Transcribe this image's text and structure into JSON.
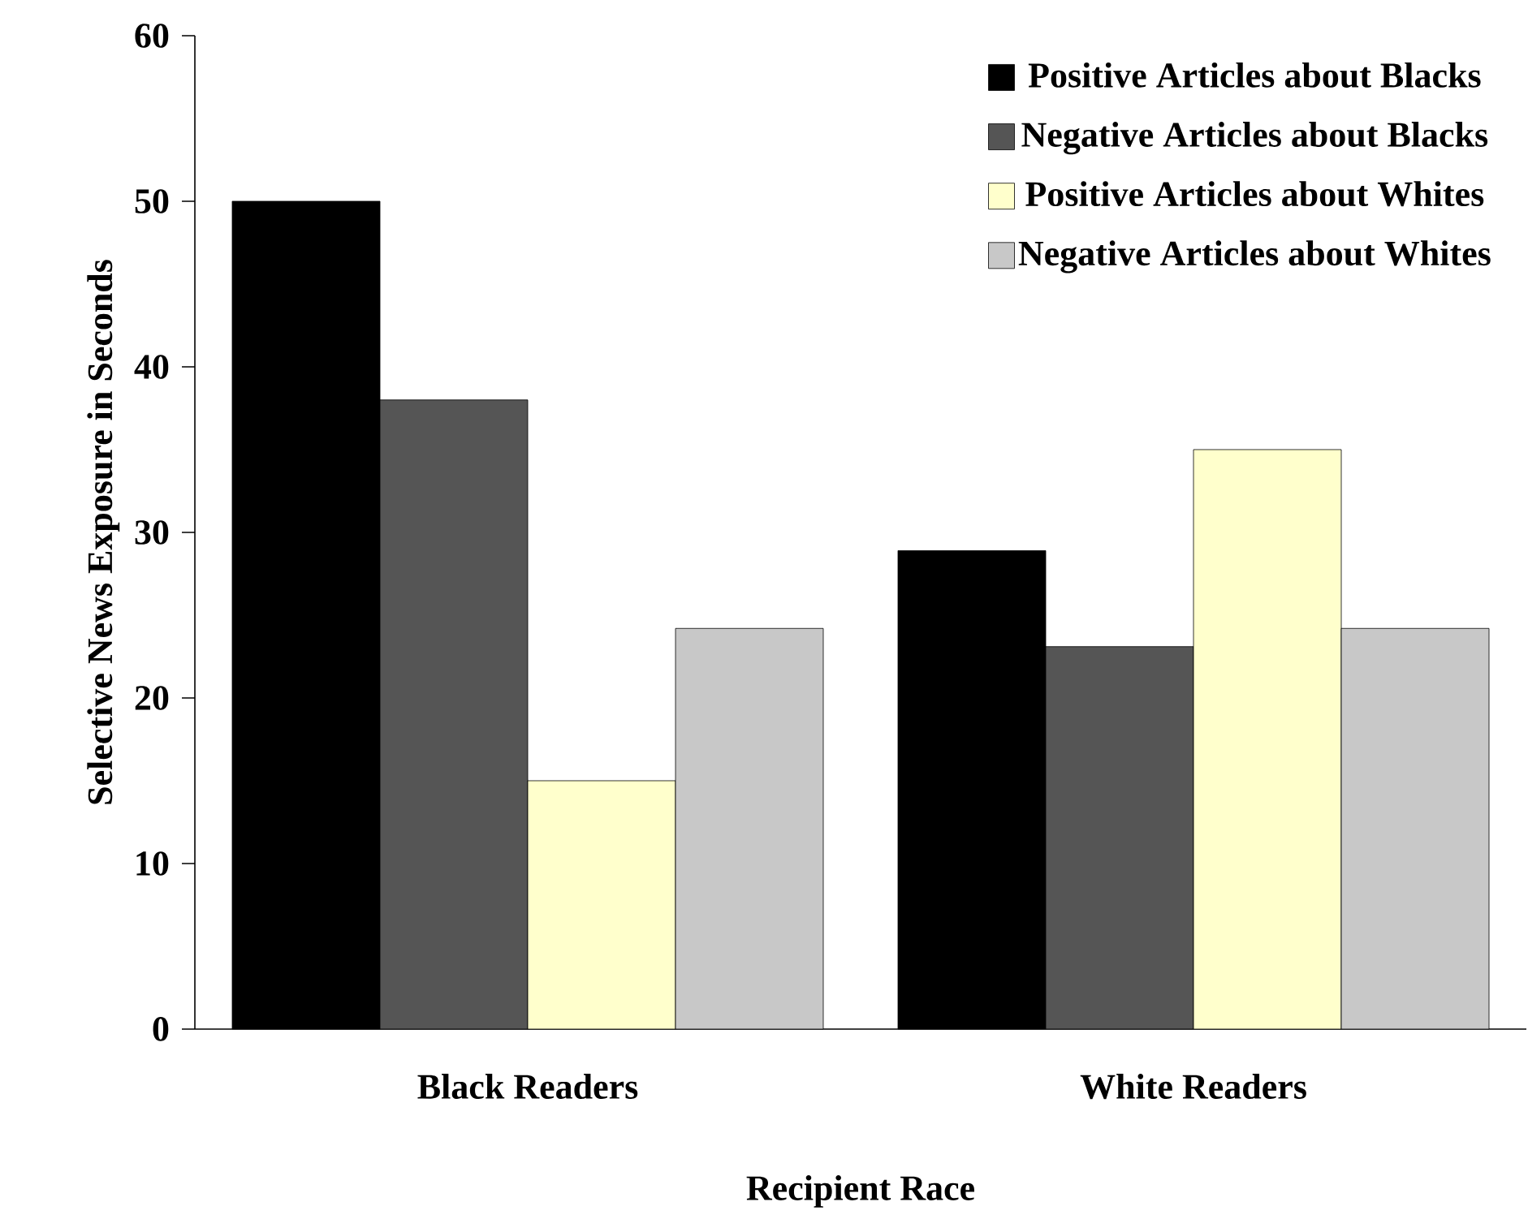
{
  "chart_data": {
    "type": "bar",
    "xlabel": "Recipient Race",
    "ylabel": "Selective News Exposure in Seconds",
    "categories": [
      "Black Readers",
      "White Readers"
    ],
    "series": [
      {
        "name": "Positive Articles about Blacks",
        "color": "#000000",
        "values": [
          50,
          28.9
        ]
      },
      {
        "name": "Negative Articles about Blacks",
        "color": "#555555",
        "values": [
          38,
          23.1
        ]
      },
      {
        "name": "Positive Articles about Whites",
        "color": "#ffffcc",
        "values": [
          15,
          35
        ]
      },
      {
        "name": "Negative Articles about Whites",
        "color": "#c8c8c8",
        "values": [
          24.2,
          24.2
        ]
      }
    ],
    "ylim": [
      0,
      60
    ],
    "yticks": [
      0,
      10,
      20,
      30,
      40,
      50,
      60
    ],
    "grid": false,
    "legend": "top right"
  }
}
